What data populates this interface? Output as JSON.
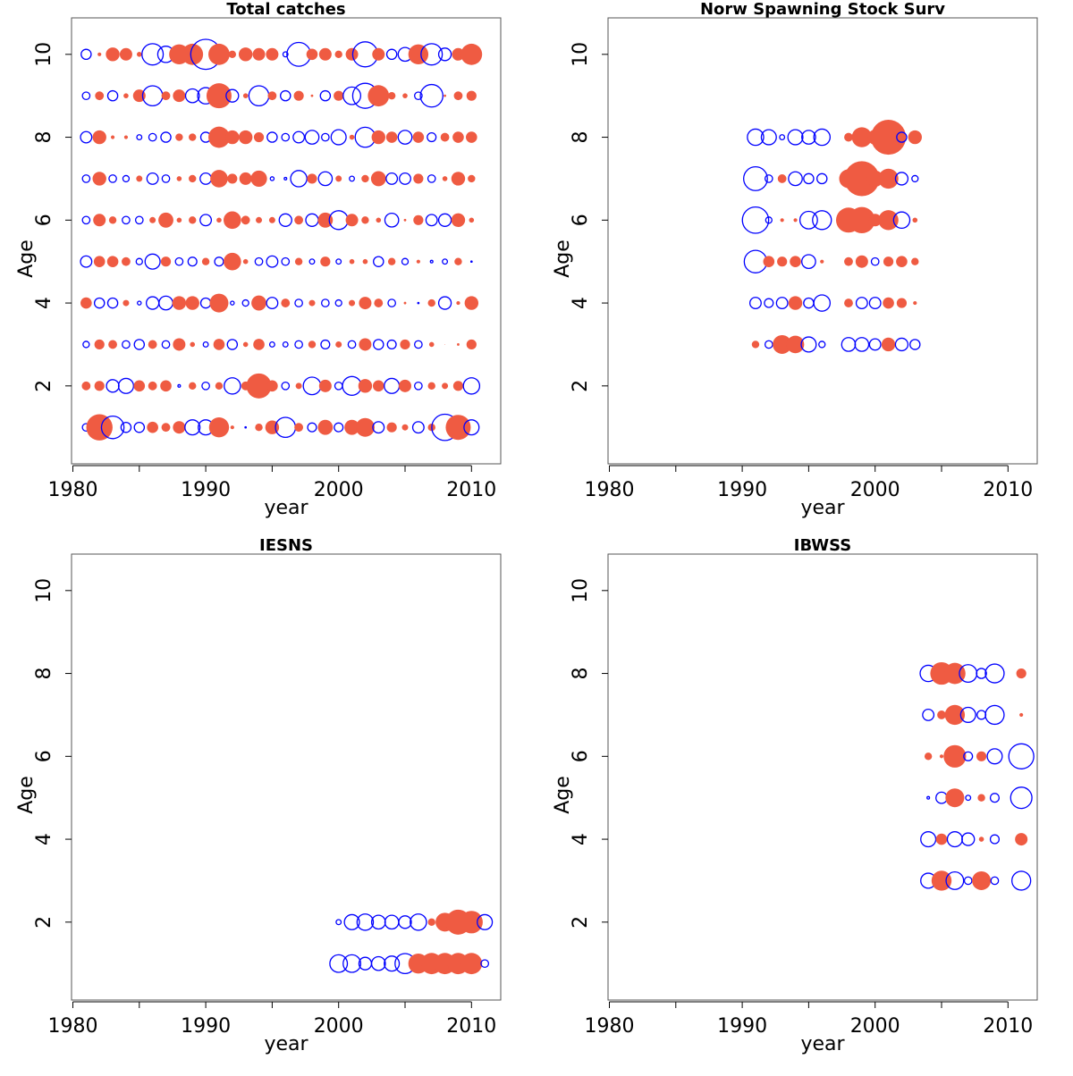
{
  "chart_data": [
    {
      "type": "bubble",
      "title": "Total catches",
      "xlabel": "year",
      "ylabel": "Age",
      "xlim": [
        1979.9,
        2012.2
      ],
      "ylim": [
        0.12,
        10.88
      ],
      "xticks": [
        1980,
        1990,
        2000,
        2010
      ],
      "minor_xticks": [
        1985,
        1995,
        2005
      ],
      "yticks": [
        2,
        4,
        6,
        8,
        10
      ],
      "positive_color": "#ef5b42",
      "negative_color": "#0000ff",
      "years": [
        1981,
        1982,
        1983,
        1984,
        1985,
        1986,
        1987,
        1988,
        1989,
        1990,
        1991,
        1992,
        1993,
        1994,
        1995,
        1996,
        1997,
        1998,
        1999,
        2000,
        2001,
        2002,
        2003,
        2004,
        2005,
        2006,
        2007,
        2008,
        2009,
        2010
      ],
      "ages": [
        1,
        2,
        3,
        4,
        5,
        6,
        7,
        8,
        9,
        10
      ],
      "residuals": [
        [
          -0.6,
          2.1,
          -1.8,
          -0.8,
          -0.8,
          0.9,
          0.7,
          1.0,
          -1.2,
          -1.2,
          1.6,
          0.3,
          -0.1,
          0.6,
          1.1,
          -1.6,
          0.7,
          -0.7,
          1.2,
          -0.7,
          1.2,
          1.5,
          -0.9,
          0.8,
          0.5,
          -0.9,
          0.6,
          -2.1,
          2.0,
          -1.2
        ],
        [
          0.7,
          0.8,
          -1.0,
          -1.2,
          0.9,
          0.7,
          0.9,
          -0.2,
          0.6,
          -0.6,
          0.6,
          -1.3,
          0.7,
          2.0,
          0.9,
          -0.6,
          0.5,
          -1.4,
          1.0,
          -0.6,
          -1.5,
          1.1,
          0.9,
          -1.2,
          1.0,
          -0.6,
          0.6,
          0.5,
          0.8,
          -1.3
        ],
        [
          -0.5,
          0.8,
          0.7,
          -0.6,
          -0.8,
          0.7,
          -0.6,
          1.0,
          0.4,
          -0.4,
          0.9,
          -0.8,
          0.4,
          0.9,
          -0.4,
          -0.4,
          -0.6,
          0.6,
          -0.7,
          0.5,
          -0.6,
          1.0,
          -0.8,
          -0.7,
          0.8,
          -0.6,
          0.4,
          0.05,
          0.2,
          0.8
        ],
        [
          0.9,
          -0.8,
          -0.8,
          0.5,
          -0.3,
          -1.0,
          -1.1,
          1.1,
          1.1,
          -0.8,
          1.5,
          -0.3,
          -0.5,
          1.2,
          -0.9,
          0.7,
          -0.6,
          0.5,
          -0.6,
          -0.5,
          0.5,
          1.0,
          0.7,
          -0.6,
          0.2,
          -0.1,
          0.6,
          -1.0,
          0.3,
          1.1
        ],
        [
          -0.9,
          0.9,
          0.9,
          0.7,
          -0.5,
          -1.2,
          0.8,
          -0.6,
          -0.7,
          0.6,
          -0.7,
          1.4,
          0.4,
          -0.6,
          -0.9,
          -0.6,
          0.6,
          -0.4,
          0.8,
          -0.4,
          0.4,
          0.4,
          -0.8,
          0.6,
          -0.5,
          0.3,
          -0.2,
          -0.4,
          0.6,
          -0.1
        ],
        [
          -0.6,
          1.0,
          0.6,
          -0.6,
          -0.6,
          0.5,
          1.2,
          0.4,
          0.6,
          -0.9,
          0.4,
          1.4,
          0.7,
          0.5,
          0.5,
          -1.0,
          0.7,
          -1.0,
          1.2,
          -1.5,
          1.0,
          0.6,
          0.4,
          -1.1,
          0.2,
          0.8,
          -0.9,
          -1.0,
          1.1,
          0.4
        ],
        [
          -0.6,
          1.1,
          -0.6,
          -0.5,
          0.5,
          -0.9,
          -0.6,
          0.4,
          0.6,
          -0.9,
          1.4,
          0.8,
          1.0,
          1.3,
          -0.3,
          -0.2,
          -1.3,
          0.8,
          -1.1,
          0.5,
          -0.4,
          0.6,
          1.2,
          -0.9,
          -0.9,
          0.8,
          -0.6,
          0.4,
          1.1,
          0.6
        ],
        [
          -0.9,
          1.1,
          0.3,
          0.3,
          -0.4,
          -0.6,
          -0.8,
          0.6,
          0.6,
          -0.8,
          1.7,
          1.1,
          1.1,
          0.8,
          -0.8,
          -0.6,
          -0.9,
          -1.1,
          -0.6,
          -1.2,
          0.4,
          -1.6,
          1.1,
          0.9,
          -1.1,
          0.9,
          -0.7,
          0.7,
          0.9,
          0.9
        ],
        [
          -0.6,
          0.7,
          -0.8,
          0.4,
          1.0,
          -1.6,
          0.7,
          1.0,
          -1.1,
          -1.3,
          2.0,
          -1.0,
          0.4,
          -1.6,
          0.7,
          -0.8,
          0.8,
          0.2,
          -0.8,
          0.8,
          -1.4,
          -2.0,
          1.7,
          0.6,
          0.4,
          -0.6,
          -1.8,
          0.2,
          0.7,
          0.8
        ],
        [
          -0.8,
          0.3,
          1.1,
          1.0,
          0.4,
          -1.7,
          -1.3,
          1.6,
          1.7,
          -2.4,
          1.7,
          0.6,
          1.1,
          1.0,
          1.0,
          -0.4,
          -1.9,
          0.9,
          1.0,
          0.6,
          1.0,
          -2.0,
          1.0,
          -0.8,
          -1.1,
          1.6,
          -1.7,
          -1.0,
          1.0,
          1.7
        ]
      ]
    },
    {
      "type": "bubble",
      "title": "Norw Spawning Stock Surv",
      "xlabel": "year",
      "ylabel": "Age",
      "xlim": [
        1979.9,
        2012.2
      ],
      "ylim": [
        0.12,
        10.88
      ],
      "xticks": [
        1980,
        1990,
        2000,
        2010
      ],
      "minor_xticks": [
        1985,
        1995,
        2005
      ],
      "yticks": [
        2,
        4,
        6,
        8,
        10
      ],
      "positive_color": "#ef5b42",
      "negative_color": "#0000ff",
      "years": [
        1991,
        1992,
        1993,
        1994,
        1995,
        1996,
        1997,
        1998,
        1999,
        2000,
        2001,
        2002,
        2003
      ],
      "ages": [
        3,
        4,
        5,
        6,
        7,
        8
      ],
      "residuals": [
        [
          0.6,
          -0.6,
          1.5,
          1.4,
          -1.2,
          -0.5,
          null,
          -1.1,
          -1.1,
          -0.9,
          1.1,
          -1.0,
          -0.8
        ],
        [
          -0.9,
          -0.7,
          -0.9,
          1.1,
          -0.8,
          -1.3,
          null,
          0.7,
          -0.9,
          -0.9,
          0.9,
          0.8,
          0.3
        ],
        [
          -1.8,
          0.9,
          0.8,
          0.9,
          -1.1,
          0.3,
          null,
          0.7,
          1.0,
          -0.6,
          0.8,
          0.9,
          0.6
        ],
        [
          -2.1,
          -0.5,
          0.3,
          0.3,
          -1.4,
          -1.5,
          null,
          2.0,
          2.1,
          1.0,
          1.6,
          -1.3,
          0.4
        ],
        [
          -1.9,
          -0.6,
          0.7,
          -1.1,
          -0.8,
          -0.8,
          null,
          1.5,
          2.8,
          1.3,
          1.6,
          -1.0,
          -0.5
        ],
        [
          -1.3,
          -1.2,
          -0.4,
          -1.2,
          -1.1,
          -1.3,
          null,
          0.7,
          1.6,
          1.2,
          2.8,
          -0.8,
          1.1
        ]
      ]
    },
    {
      "type": "bubble",
      "title": "IESNS",
      "xlabel": "year",
      "ylabel": "Age",
      "xlim": [
        1979.9,
        2012.2
      ],
      "ylim": [
        0.12,
        10.88
      ],
      "xticks": [
        1980,
        1990,
        2000,
        2010
      ],
      "minor_xticks": [
        1985,
        1995,
        2005
      ],
      "yticks": [
        2,
        4,
        6,
        8,
        10
      ],
      "positive_color": "#ef5b42",
      "negative_color": "#0000ff",
      "years": [
        2000,
        2001,
        2002,
        2003,
        2004,
        2005,
        2006,
        2007,
        2008,
        2009,
        2010,
        2011
      ],
      "ages": [
        1,
        2
      ],
      "residuals": [
        [
          -1.4,
          -1.4,
          -1.0,
          -1.1,
          -1.2,
          -1.6,
          1.6,
          1.7,
          1.7,
          1.7,
          1.7,
          -0.6
        ],
        [
          -0.4,
          -1.2,
          -1.3,
          -1.1,
          -1.1,
          -1.0,
          -1.3,
          0.6,
          1.5,
          2.0,
          1.8,
          -1.2
        ]
      ]
    },
    {
      "type": "bubble",
      "title": "IBWSS",
      "xlabel": "year",
      "ylabel": "Age",
      "xlim": [
        1979.9,
        2012.2
      ],
      "ylim": [
        0.12,
        10.88
      ],
      "xticks": [
        1980,
        1990,
        2000,
        2010
      ],
      "minor_xticks": [
        1985,
        1995,
        2005
      ],
      "yticks": [
        2,
        4,
        6,
        8,
        10
      ],
      "positive_color": "#ef5b42",
      "negative_color": "#0000ff",
      "years": [
        2004,
        2005,
        2006,
        2007,
        2008,
        2009,
        2010,
        2011
      ],
      "ages": [
        3,
        4,
        5,
        6,
        7,
        8
      ],
      "residuals": [
        [
          -1.2,
          1.6,
          -1.4,
          -0.6,
          1.5,
          -0.6,
          null,
          -1.5
        ],
        [
          -1.2,
          0.9,
          -1.2,
          -1.0,
          0.4,
          -0.7,
          null,
          1.0
        ],
        [
          -0.2,
          -0.9,
          1.5,
          -0.4,
          0.6,
          -0.7,
          null,
          -1.7
        ],
        [
          0.6,
          0.3,
          1.8,
          -0.7,
          0.8,
          -1.2,
          null,
          -2.0
        ],
        [
          -0.9,
          0.7,
          1.6,
          -1.2,
          -0.7,
          -1.5,
          null,
          0.3
        ],
        [
          -1.3,
          1.8,
          1.7,
          -1.4,
          -0.8,
          -1.5,
          null,
          0.8
        ]
      ]
    }
  ]
}
